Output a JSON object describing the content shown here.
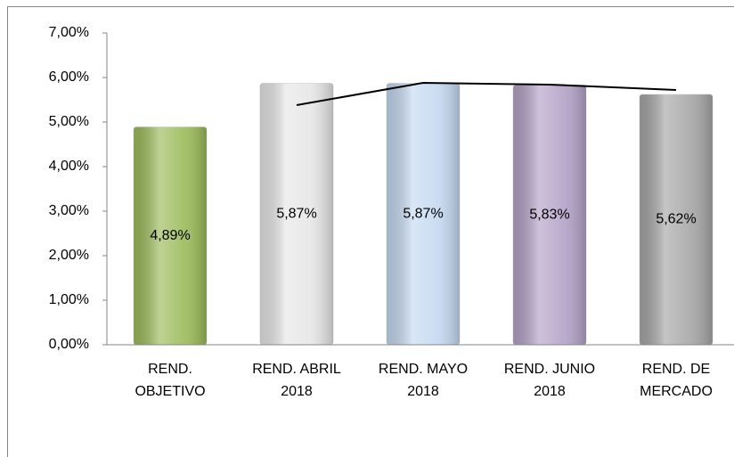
{
  "chart_data": {
    "type": "bar",
    "categories": [
      [
        "REND.",
        "OBJETIVO"
      ],
      [
        "REND. ABRIL",
        "2018"
      ],
      [
        "REND. MAYO",
        "2018"
      ],
      [
        "REND. JUNIO",
        "2018"
      ],
      [
        "REND. DE",
        "MERCADO"
      ]
    ],
    "values": [
      4.89,
      5.87,
      5.87,
      5.83,
      5.62
    ],
    "value_labels": [
      "4,89%",
      "5,87%",
      "5,87%",
      "5,83%",
      "5,62%"
    ],
    "colors": [
      "#9bbb59",
      "#e6e6e6",
      "#c5d9f1",
      "#b3a2c7",
      "#a6a6a6"
    ],
    "line": {
      "values": [
        null,
        5.38,
        5.88,
        5.84,
        5.72
      ],
      "color": "#000000"
    },
    "ylim": [
      0,
      7
    ],
    "yticks": [
      {
        "value": 0,
        "label": "0,00%"
      },
      {
        "value": 1,
        "label": "1,00%"
      },
      {
        "value": 2,
        "label": "2,00%"
      },
      {
        "value": 3,
        "label": "3,00%"
      },
      {
        "value": 4,
        "label": "4,00%"
      },
      {
        "value": 5,
        "label": "5,00%"
      },
      {
        "value": 6,
        "label": "6,00%"
      },
      {
        "value": 7,
        "label": "7,00%"
      }
    ],
    "grid": false
  }
}
